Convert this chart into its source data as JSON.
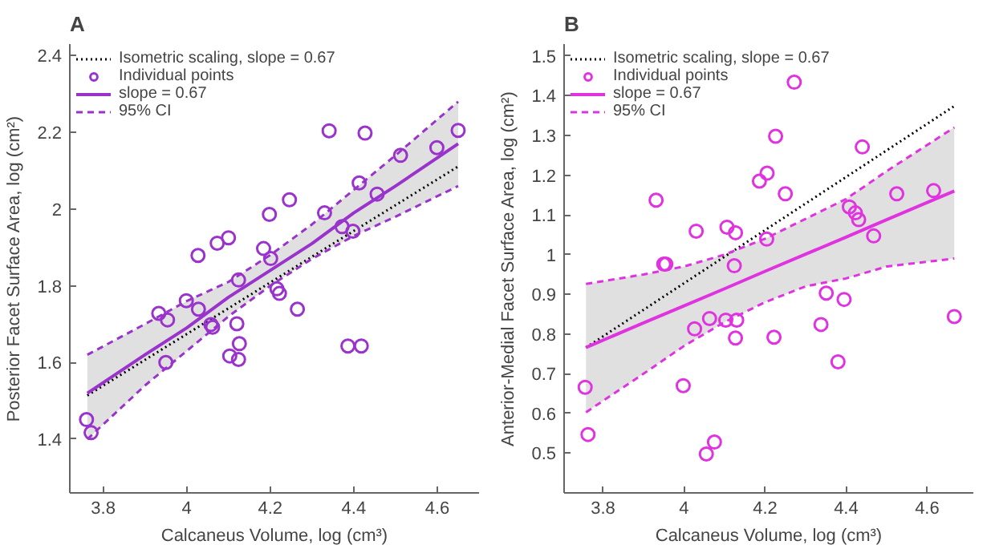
{
  "chart_data": [
    {
      "type": "scatter",
      "title": "A",
      "xlabel": "Calcaneus Volume, log (cm³)",
      "ylabel": "Posterior Facet Surface Area, log (cm²)",
      "xlim": [
        3.72,
        4.7
      ],
      "ylim": [
        1.26,
        2.43
      ],
      "xticks": [
        3.8,
        4,
        4.2,
        4.4,
        4.6
      ],
      "yticks": [
        1.4,
        1.6,
        1.8,
        2,
        2.2,
        2.4
      ],
      "legend": "top left",
      "series": [
        {
          "type": "line",
          "name": "Isometric scaling, slope = 0.67",
          "color": "#000000",
          "line_style": "dotted",
          "x": [
            3.762,
            4.65
          ],
          "values": [
            1.514,
            2.111
          ]
        },
        {
          "name": "Individual points",
          "color": "#9933cc",
          "marker": "circle",
          "x": [
            4.341,
            4.427,
            4.65,
            4.599,
            4.512,
            4.413,
            4.456,
            4.246,
            4.198,
            4.33,
            4.372,
            4.398,
            4.1,
            4.073,
            4.184,
            4.201,
            4.027,
            4.124,
            3.999,
            4.028,
            3.933,
            3.954,
            4.216,
            4.222,
            4.265,
            4.12,
            4.058,
            4.062,
            3.95,
            4.126,
            4.103,
            4.124,
            4.386,
            4.418,
            3.76,
            3.771
          ],
          "values": [
            2.204,
            2.198,
            2.205,
            2.16,
            2.14,
            2.068,
            2.039,
            2.024,
            1.986,
            1.99,
            1.954,
            1.942,
            1.925,
            1.911,
            1.897,
            1.871,
            1.879,
            1.815,
            1.761,
            1.739,
            1.728,
            1.711,
            1.792,
            1.78,
            1.739,
            1.701,
            1.699,
            1.692,
            1.6,
            1.649,
            1.617,
            1.608,
            1.643,
            1.643,
            1.451,
            1.417
          ]
        },
        {
          "type": "line",
          "name": "slope = 0.67",
          "color": "#9933cc",
          "line_style": "solid",
          "x": [
            3.762,
            3.9,
            4.0,
            4.1,
            4.2,
            4.3,
            4.4,
            4.5,
            4.65
          ],
          "values": [
            1.52,
            1.62,
            1.69,
            1.77,
            1.84,
            1.91,
            1.99,
            2.06,
            2.17
          ],
          "lower": [
            1.4,
            1.54,
            1.63,
            1.72,
            1.8,
            1.87,
            1.93,
            1.98,
            2.06
          ],
          "upper": [
            1.62,
            1.7,
            1.76,
            1.81,
            1.88,
            1.96,
            2.05,
            2.14,
            2.28
          ]
        },
        {
          "type": "line",
          "name": "95% CI",
          "color": "#9933cc",
          "line_style": "dashed",
          "x": [
            3.762,
            3.9,
            4.0,
            4.1,
            4.2,
            4.3,
            4.4,
            4.5,
            4.65
          ],
          "values": [
            1.62,
            1.7,
            1.76,
            1.81,
            1.88,
            1.96,
            2.05,
            2.14,
            2.28
          ]
        },
        {
          "type": "line",
          "color": "#9933cc",
          "line_style": "dashed",
          "x": [
            3.762,
            3.9,
            4.0,
            4.1,
            4.2,
            4.3,
            4.4,
            4.5,
            4.65
          ],
          "values": [
            1.4,
            1.54,
            1.63,
            1.72,
            1.8,
            1.87,
            1.93,
            1.98,
            2.06
          ]
        }
      ]
    },
    {
      "type": "scatter",
      "title": "B",
      "xlabel": "Calcaneus Volume, log (cm³)",
      "ylabel": "Anterior-Medial Facet Surface Area, log (cm²)",
      "xlim": [
        3.704,
        4.714
      ],
      "ylim": [
        0.4,
        1.53
      ],
      "xticks": [
        3.8,
        4,
        4.2,
        4.4,
        4.6
      ],
      "yticks": [
        0.5,
        0.6,
        0.7,
        0.8,
        0.9,
        1,
        1.1,
        1.2,
        1.3,
        1.4,
        1.5
      ],
      "legend": "top left",
      "series": [
        {
          "type": "line",
          "name": "Isometric scaling, slope = 0.67",
          "color": "#000000",
          "line_style": "dotted",
          "x": [
            3.758,
            4.667
          ],
          "values": [
            0.766,
            1.374
          ]
        },
        {
          "name": "Individual points",
          "color": "#e033e0",
          "marker": "circle",
          "x": [
            4.272,
            4.226,
            4.44,
            4.205,
            4.186,
            4.25,
            3.931,
            4.525,
            4.616,
            4.408,
            4.423,
            4.431,
            4.468,
            4.03,
            4.106,
            4.127,
            4.204,
            3.95,
            3.955,
            4.124,
            4.351,
            4.395,
            4.667,
            4.063,
            4.026,
            4.103,
            4.13,
            4.338,
            4.127,
            4.222,
            4.38,
            3.756,
            3.998,
            3.763,
            4.075,
            4.055
          ],
          "values": [
            1.434,
            1.298,
            1.271,
            1.205,
            1.185,
            1.153,
            1.137,
            1.153,
            1.161,
            1.12,
            1.105,
            1.088,
            1.047,
            1.059,
            1.069,
            1.055,
            1.039,
            0.976,
            0.976,
            0.972,
            0.903,
            0.887,
            0.844,
            0.839,
            0.813,
            0.835,
            0.835,
            0.824,
            0.79,
            0.792,
            0.73,
            0.666,
            0.67,
            0.547,
            0.528,
            0.498
          ]
        },
        {
          "type": "line",
          "name": "slope = 0.67",
          "color": "#e033e0",
          "line_style": "solid",
          "x": [
            3.758,
            3.9,
            4.0,
            4.1,
            4.2,
            4.3,
            4.4,
            4.5,
            4.667
          ],
          "values": [
            0.766,
            0.828,
            0.871,
            0.914,
            0.958,
            1.001,
            1.044,
            1.088,
            1.16
          ],
          "lower": [
            0.603,
            0.7,
            0.77,
            0.83,
            0.88,
            0.92,
            0.94,
            0.97,
            0.99
          ],
          "upper": [
            0.926,
            0.95,
            0.97,
            1.0,
            1.04,
            1.09,
            1.14,
            1.21,
            1.32
          ]
        },
        {
          "type": "line",
          "name": "95% CI",
          "color": "#e033e0",
          "line_style": "dashed",
          "x": [
            3.758,
            3.9,
            4.0,
            4.1,
            4.2,
            4.3,
            4.4,
            4.5,
            4.667
          ],
          "values": [
            0.926,
            0.95,
            0.97,
            1.0,
            1.04,
            1.09,
            1.14,
            1.21,
            1.32
          ]
        },
        {
          "type": "line",
          "color": "#e033e0",
          "line_style": "dashed",
          "x": [
            3.758,
            3.9,
            4.0,
            4.1,
            4.2,
            4.3,
            4.4,
            4.5,
            4.667
          ],
          "values": [
            0.603,
            0.7,
            0.77,
            0.83,
            0.88,
            0.92,
            0.94,
            0.97,
            0.99
          ]
        }
      ]
    }
  ]
}
